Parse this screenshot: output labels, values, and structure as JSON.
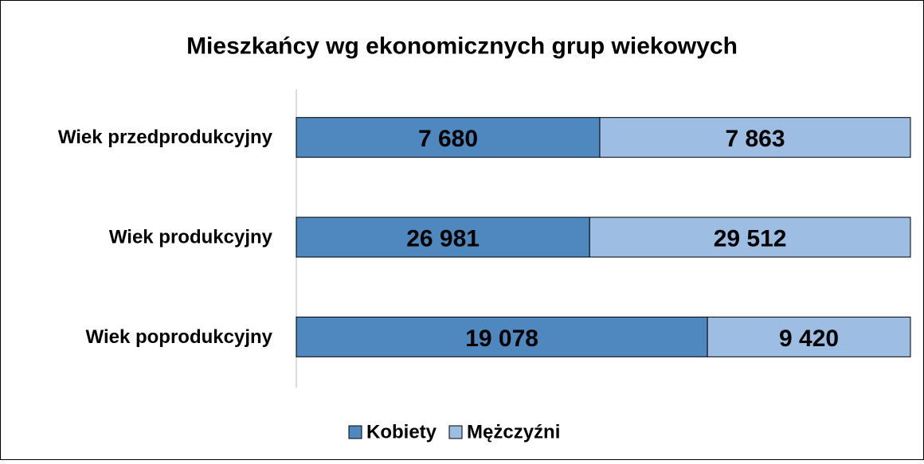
{
  "chart_data": {
    "type": "bar",
    "orientation": "horizontal",
    "stacking": "percent",
    "title": "Mieszkańcy wg ekonomicznych grup wiekowych",
    "categories": [
      "Wiek przedprodukcyjny",
      "Wiek produkcyjny",
      "Wiek poprodukcyjny"
    ],
    "series": [
      {
        "name": "Kobiety",
        "color": "#4f88bf",
        "values": [
          7680,
          26981,
          19078
        ],
        "value_labels": [
          "7 680",
          "26 981",
          "19 078"
        ]
      },
      {
        "name": "Mężczyźni",
        "color": "#9dbde2",
        "values": [
          7863,
          29512,
          9420
        ],
        "value_labels": [
          "7 863",
          "29 512",
          "9 420"
        ]
      }
    ],
    "legend": "bottom"
  }
}
